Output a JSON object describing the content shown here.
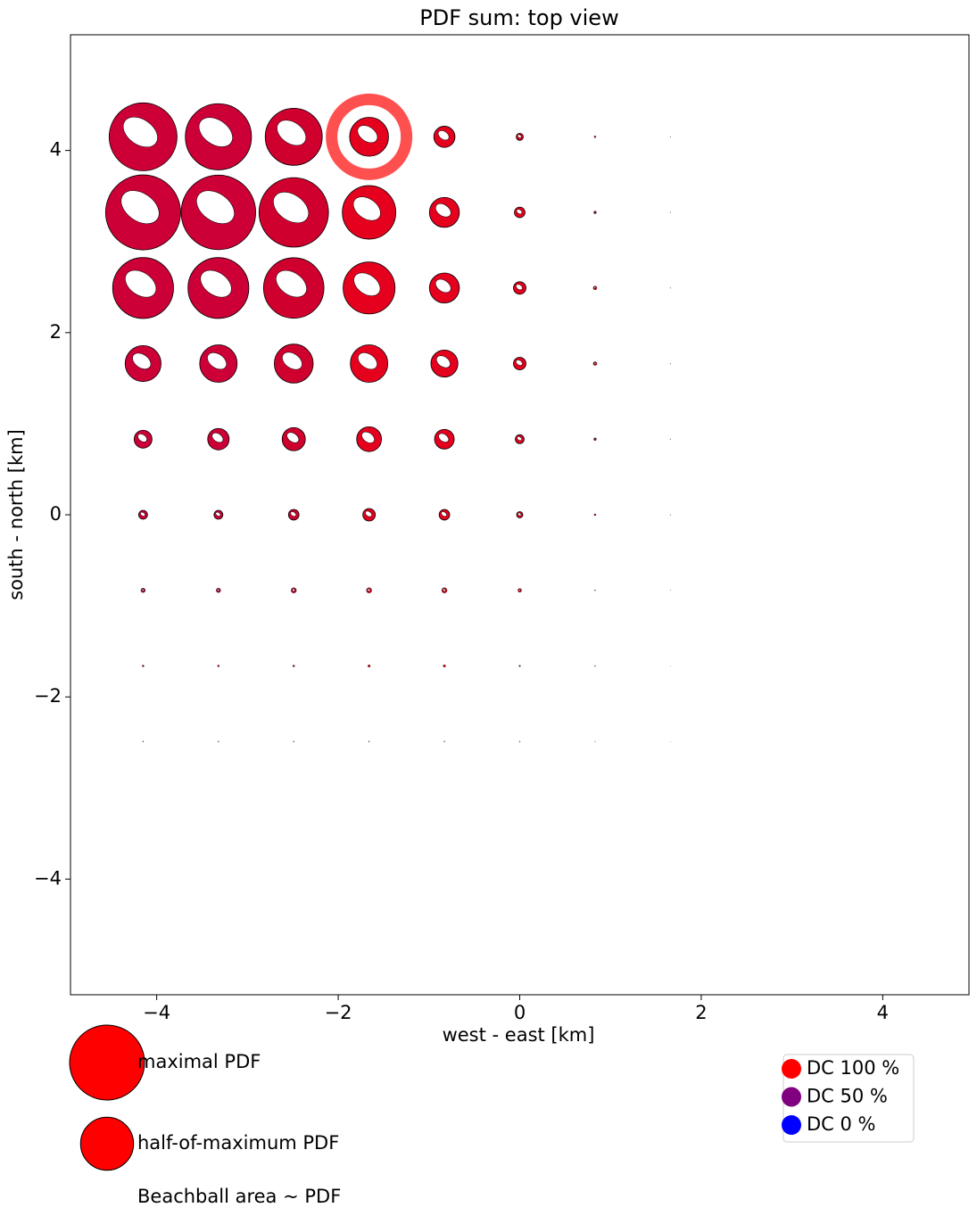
{
  "chart_data": {
    "type": "beachball",
    "title": "PDF sum: top view",
    "x_label": "west - east [km]",
    "y_label": "south - north [km]",
    "xlim": [
      -4.95,
      4.95
    ],
    "ylim": [
      -5.27,
      5.27
    ],
    "xticks": [
      {
        "value": -4,
        "label": "−4"
      },
      {
        "value": -2,
        "label": "−2"
      },
      0,
      2,
      4
    ],
    "yticks": [
      {
        "value": -4,
        "label": "−4"
      },
      {
        "value": -2,
        "label": "−2"
      },
      0,
      2,
      4
    ],
    "x": [
      -4.15,
      -3.32,
      -2.49,
      -1.66,
      -0.83,
      0,
      0.83,
      1.66
    ],
    "colors": [
      "#cc0036",
      "#cc0036",
      "#d0002e",
      "#e5001e",
      "#e5001e",
      "#e5001e",
      "#e5001e",
      "#e5001e"
    ],
    "rows": [
      {
        "y": 4.15,
        "values": [
          0.82,
          0.78,
          0.58,
          0.27,
          0.08,
          0.009,
          0.0006,
          5e-05
        ]
      },
      {
        "y": 3.32,
        "values": [
          1.0,
          0.99,
          0.86,
          0.51,
          0.16,
          0.02,
          0.0013,
          5e-05
        ]
      },
      {
        "y": 2.49,
        "values": [
          0.66,
          0.66,
          0.65,
          0.48,
          0.16,
          0.028,
          0.0023,
          5e-05
        ]
      },
      {
        "y": 1.66,
        "values": [
          0.23,
          0.25,
          0.27,
          0.25,
          0.13,
          0.028,
          0.0023,
          5e-05
        ]
      },
      {
        "y": 0.83,
        "values": [
          0.057,
          0.082,
          0.096,
          0.11,
          0.069,
          0.014,
          0.0013,
          5e-05
        ]
      },
      {
        "y": 0,
        "values": [
          0.014,
          0.014,
          0.02,
          0.028,
          0.02,
          0.007,
          0.0006,
          5e-05
        ]
      },
      {
        "y": -0.83,
        "values": [
          0.0035,
          0.0035,
          0.005,
          0.005,
          0.005,
          0.0023,
          0.00014,
          2e-05
        ]
      },
      {
        "y": -1.66,
        "values": [
          0.0006,
          0.0006,
          0.0006,
          0.001,
          0.001,
          0.0004,
          0.00014,
          1e-05
        ]
      },
      {
        "y": -2.49,
        "values": [
          0.00014,
          0.00014,
          0.00014,
          0.00014,
          0.00014,
          0.0001,
          5e-05,
          1e-05
        ]
      }
    ],
    "highlight": {
      "x": -1.66,
      "y": 4.15,
      "color": "#ff5050"
    },
    "size_legend": [
      {
        "label": "maximal PDF",
        "value": 1
      },
      {
        "label": "half-of-maximum PDF",
        "value": 0.5
      }
    ],
    "size_note": "Beachball area ~ PDF",
    "dc_legend": [
      {
        "label": "DC 100 %",
        "color": "#ff0000"
      },
      {
        "label": "DC 50 %",
        "color": "#800080"
      },
      {
        "label": "DC 0 %",
        "color": "#0000ff"
      }
    ]
  }
}
